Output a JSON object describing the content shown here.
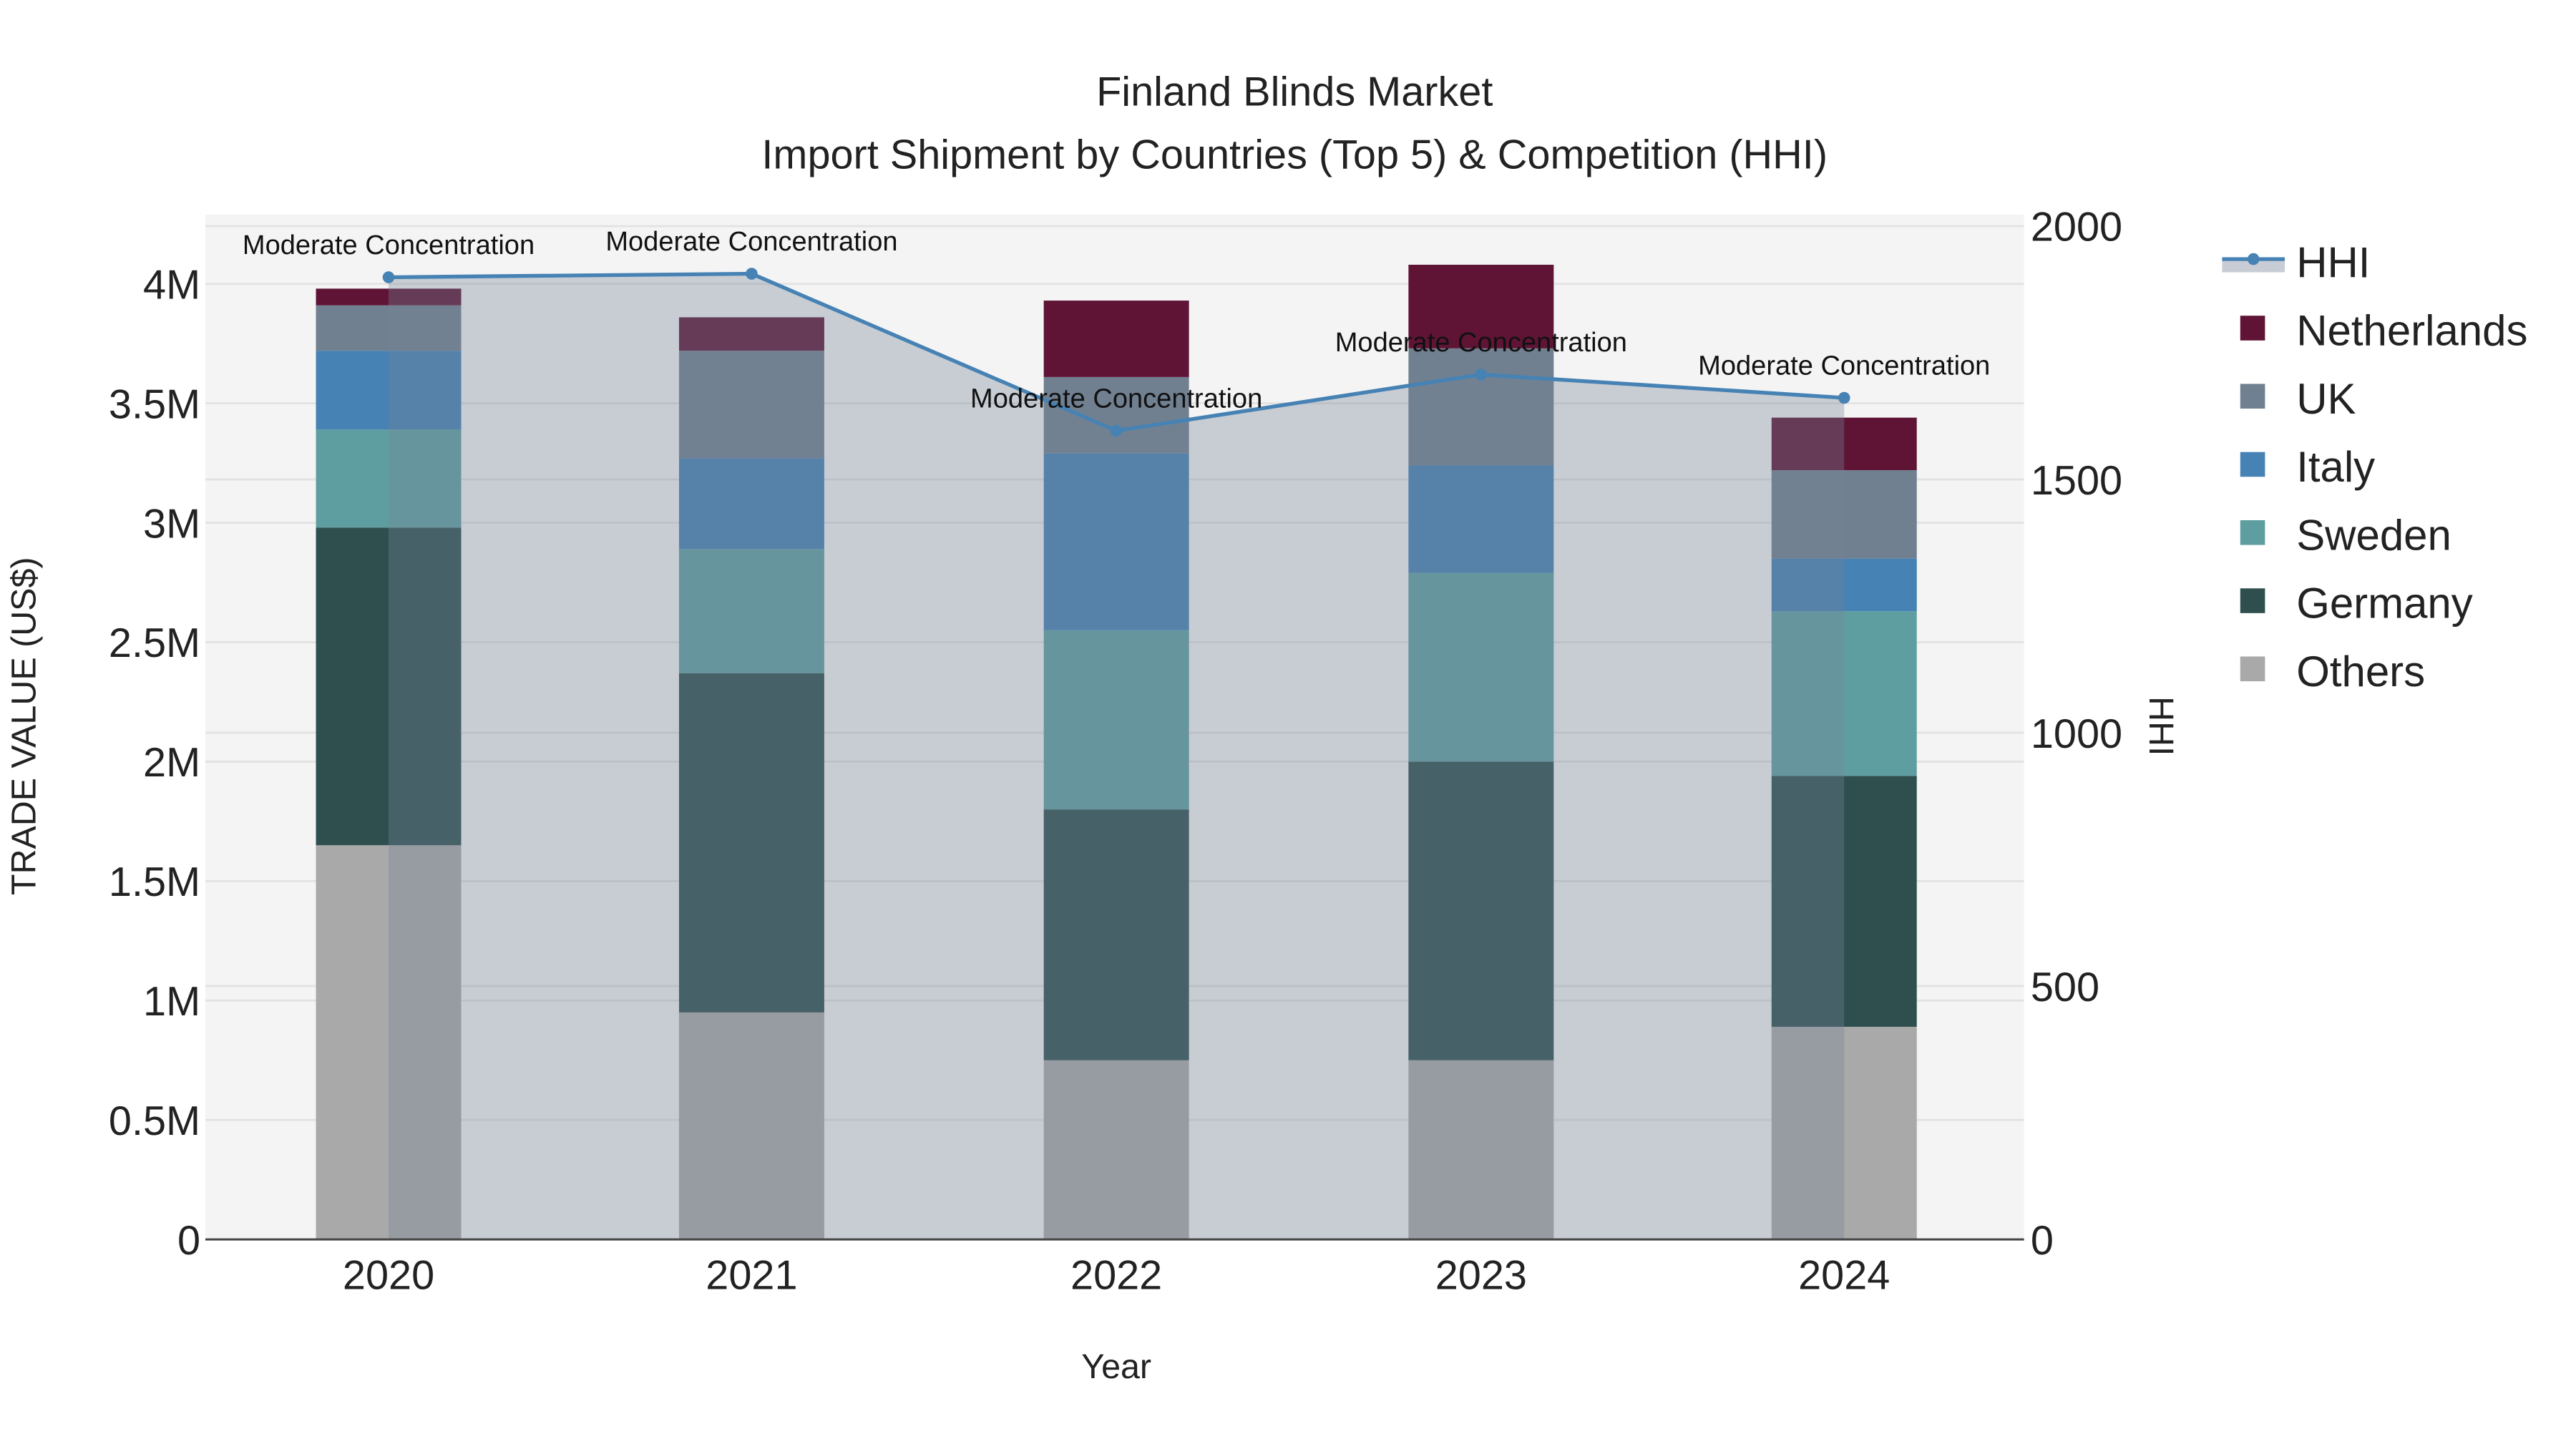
{
  "chart_data": {
    "type": "bar",
    "stacked": true,
    "title": "Finland Blinds Market",
    "subtitle": "Import Shipment by Countries (Top 5) & Competition (HHI)",
    "xlabel": "Year",
    "ylabel": "TRADE VALUE (US$)",
    "y2label": "HHI",
    "categories": [
      "2020",
      "2021",
      "2022",
      "2023",
      "2024"
    ],
    "ylim": [
      0,
      4.28
    ],
    "y_unit": "M US$",
    "yticks": [
      0,
      0.5,
      1,
      1.5,
      2,
      2.5,
      3,
      3.5,
      4
    ],
    "ytick_labels": [
      "0",
      "0.5M",
      "1M",
      "1.5M",
      "2M",
      "2.5M",
      "3M",
      "3.5M",
      "4M"
    ],
    "y2lim": [
      0,
      2025
    ],
    "y2ticks": [
      0,
      500,
      1000,
      1500,
      2000
    ],
    "y2tick_labels": [
      "0",
      "500",
      "1000",
      "1500",
      "2000"
    ],
    "grid": true,
    "legend_placement": "right",
    "series": [
      {
        "name": "Others",
        "color": "#a9a9a9",
        "values": [
          1.65,
          0.95,
          0.75,
          0.75,
          0.89
        ]
      },
      {
        "name": "Germany",
        "color": "#2f4f4f",
        "values": [
          1.33,
          1.42,
          1.05,
          1.25,
          1.05
        ]
      },
      {
        "name": "Sweden",
        "color": "#5f9ea0",
        "values": [
          0.41,
          0.52,
          0.75,
          0.79,
          0.69
        ]
      },
      {
        "name": "Italy",
        "color": "#4682b4",
        "values": [
          0.33,
          0.38,
          0.74,
          0.45,
          0.22
        ]
      },
      {
        "name": "UK",
        "color": "#708090",
        "values": [
          0.19,
          0.45,
          0.32,
          0.49,
          0.37
        ]
      },
      {
        "name": "Netherlands",
        "color": "#5f1435",
        "values": [
          0.07,
          0.14,
          0.32,
          0.35,
          0.22
        ]
      }
    ],
    "hhi": {
      "name": "HHI",
      "color": "#4682b4",
      "values": [
        1899,
        1906,
        1596,
        1707,
        1661
      ],
      "annotations": [
        "Moderate Concentration",
        "Moderate Concentration",
        "Moderate Concentration",
        "Moderate Concentration",
        "Moderate Concentration"
      ]
    },
    "legend": [
      "HHI",
      "Netherlands",
      "UK",
      "Italy",
      "Sweden",
      "Germany",
      "Others"
    ]
  }
}
